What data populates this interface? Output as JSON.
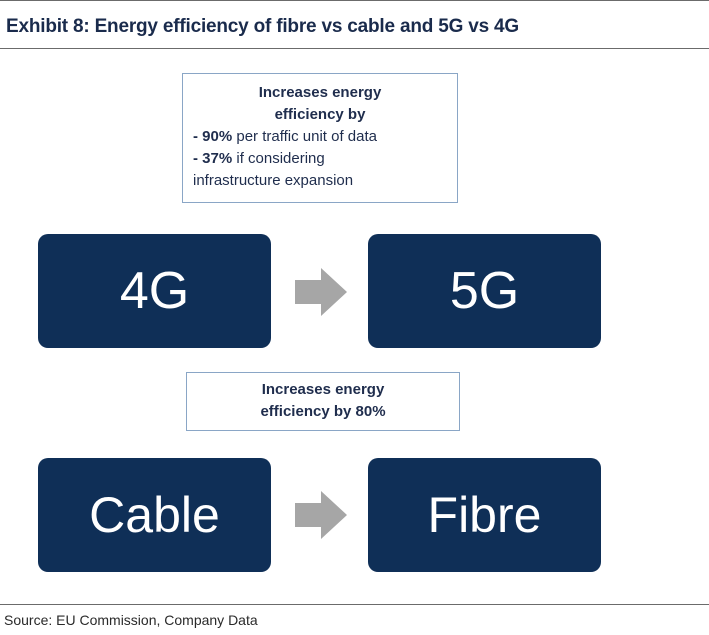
{
  "exhibit": {
    "title": "Exhibit 8: Energy efficiency of fibre vs cable and 5G vs 4G"
  },
  "mobile": {
    "callout": {
      "heading_line1": "Increases energy",
      "heading_line2": "efficiency by",
      "item1_value": "- 90%",
      "item1_text": "per traffic unit of data",
      "item2_value": "- 37%",
      "item2_text": "if considering",
      "item2_text_line2": "infrastructure expansion"
    },
    "from_label": "4G",
    "to_label": "5G"
  },
  "fixed": {
    "callout": {
      "line1": "Increases energy",
      "line2": "efficiency by 80%"
    },
    "from_label": "Cable",
    "to_label": "Fibre"
  },
  "source": "Source: EU Commission, Company Data",
  "colors": {
    "node_fill": "#0f2f57",
    "arrow_fill": "#a6a6a6",
    "callout_border": "#8aa6c6"
  }
}
